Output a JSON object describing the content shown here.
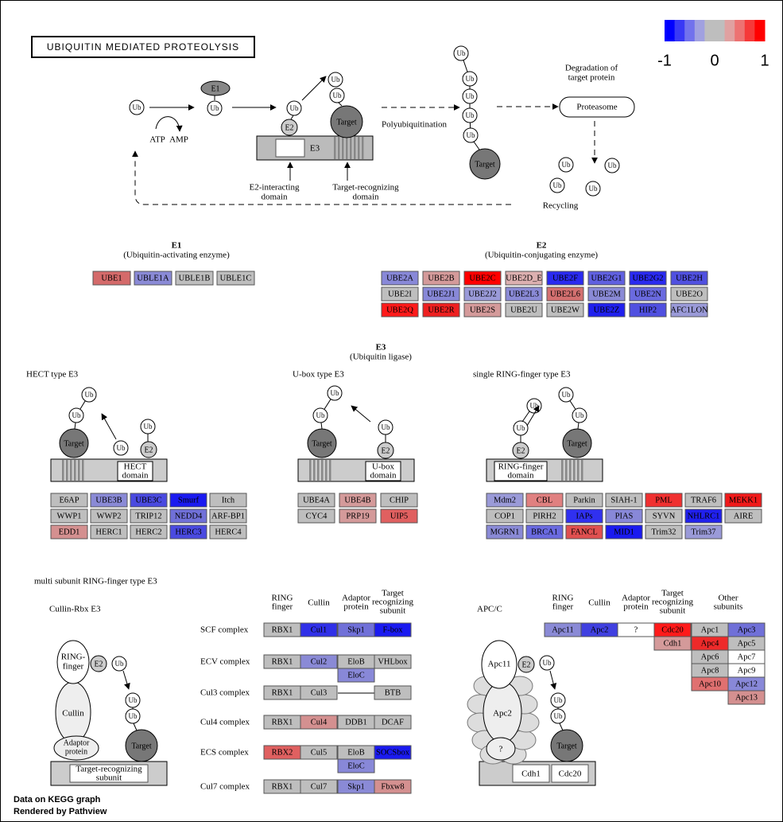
{
  "title": "UBIQUITIN MEDIATED PROTEOLYSIS",
  "legend": {
    "colors": [
      "#0000ff",
      "#3939f6",
      "#7272ed",
      "#a1a1e0",
      "#bebebe",
      "#bebebe",
      "#e0a1a1",
      "#ed7272",
      "#f63939",
      "#ff0000"
    ],
    "lim": [
      -1,
      1
    ],
    "ticks": [
      -1,
      0,
      1
    ]
  },
  "diagram": {
    "ub": "Ub",
    "e1": "E1",
    "e2": "E2",
    "e3": "E3",
    "target": "Target",
    "atp": "ATP",
    "amp": "AMP",
    "degradation": [
      "Degradation of",
      "target protein"
    ],
    "proteasome": "Proteasome",
    "polyubiquitination": "Polyubiquitination",
    "recycling": "Recycling",
    "e2_domain": [
      "E2-interacting",
      "domain"
    ],
    "target_domain": [
      "Target-recognizing",
      "domain"
    ]
  },
  "e1_section": {
    "title": "E1",
    "subtitle": "(Ubiquitin-activating enzyme)",
    "genes": [
      [
        {
          "label": "UBE1",
          "color": "#d46a6a"
        },
        {
          "label": "UBLE1A",
          "color": "#8a8ad6"
        },
        {
          "label": "UBLE1B",
          "color": "#bebebe"
        },
        {
          "label": "UBLE1C",
          "color": "#bebebe"
        }
      ]
    ]
  },
  "e2_section": {
    "title": "E2",
    "subtitle": "(Ubiquitin-conjugating enzyme)",
    "genes": [
      [
        {
          "label": "UBE2A",
          "color": "#8888d8"
        },
        {
          "label": "UBE2B",
          "color": "#d49a9a"
        },
        {
          "label": "UBE2C",
          "color": "#ff0000"
        },
        {
          "label": "UBE2D_E",
          "color": "#dcb0b0"
        },
        {
          "label": "UBE2F",
          "color": "#2a2af0"
        },
        {
          "label": "UBE2G1",
          "color": "#6060e0"
        },
        {
          "label": "UBE2G2",
          "color": "#2a2af0"
        },
        {
          "label": "UBE2H",
          "color": "#5050e0"
        }
      ],
      [
        {
          "label": "UBE2I",
          "color": "#bebebe"
        },
        {
          "label": "UBE2J1",
          "color": "#8888d8"
        },
        {
          "label": "UBE2J2",
          "color": "#9a9ad8"
        },
        {
          "label": "UBE2L3",
          "color": "#8a8ad6"
        },
        {
          "label": "UBE2L6",
          "color": "#d47070"
        },
        {
          "label": "UBE2M",
          "color": "#8a8ad6"
        },
        {
          "label": "UBE2N",
          "color": "#6a6ae0"
        },
        {
          "label": "UBE2O",
          "color": "#bebebe"
        }
      ],
      [
        {
          "label": "UBE2Q",
          "color": "#ff1a1a"
        },
        {
          "label": "UBE2R",
          "color": "#ee2020"
        },
        {
          "label": "UBE2S",
          "color": "#d49a9a"
        },
        {
          "label": "UBE2U",
          "color": "#bebebe"
        },
        {
          "label": "UBE2W",
          "color": "#bebebe"
        },
        {
          "label": "UBE2Z",
          "color": "#2020ee"
        },
        {
          "label": "HIP2",
          "color": "#5050e0"
        },
        {
          "label": "AFC1LON",
          "color": "#9a9ad8"
        }
      ]
    ]
  },
  "e3_section": {
    "title": "E3",
    "subtitle": "(Ubiquitin ligase)"
  },
  "hect": {
    "title": "HECT type E3",
    "domain": [
      "HECT",
      "domain"
    ],
    "genes": [
      [
        {
          "label": "E6AP",
          "color": "#bebebe"
        },
        {
          "label": "UBE3B",
          "color": "#8a8ad6"
        },
        {
          "label": "UBE3C",
          "color": "#4a4ae0"
        },
        {
          "label": "Smurf",
          "color": "#1a1af0"
        },
        {
          "label": "Itch",
          "color": "#bebebe"
        }
      ],
      [
        {
          "label": "WWP1",
          "color": "#bebebe"
        },
        {
          "label": "WWP2",
          "color": "#bebebe"
        },
        {
          "label": "TRIP12",
          "color": "#bebebe"
        },
        {
          "label": "NEDD4",
          "color": "#7070d8"
        },
        {
          "label": "ARF-BP1",
          "color": "#bebebe"
        }
      ],
      [
        {
          "label": "EDD1",
          "color": "#d49090"
        },
        {
          "label": "HERC1",
          "color": "#bebebe"
        },
        {
          "label": "HERC2",
          "color": "#bebebe"
        },
        {
          "label": "HERC3",
          "color": "#4a4ae0"
        },
        {
          "label": "HERC4",
          "color": "#bebebe"
        }
      ]
    ]
  },
  "ubox": {
    "title": "U-box type E3",
    "domain": [
      "U-box",
      "domain"
    ],
    "genes": [
      [
        {
          "label": "UBE4A",
          "color": "#bebebe"
        },
        {
          "label": "UBE4B",
          "color": "#d49a9a"
        },
        {
          "label": "CHIP",
          "color": "#bebebe"
        }
      ],
      [
        {
          "label": "CYC4",
          "color": "#bebebe"
        },
        {
          "label": "PRP19",
          "color": "#d49a9a"
        },
        {
          "label": "UIP5",
          "color": "#e06060"
        }
      ]
    ]
  },
  "ring": {
    "title": "single RING-finger type E3",
    "domain": [
      "RING-finger",
      "domain"
    ],
    "genes": [
      [
        {
          "label": "Mdm2",
          "color": "#9a9ad8"
        },
        {
          "label": "CBL",
          "color": "#e08080"
        },
        {
          "label": "Parkin",
          "color": "#bebebe"
        },
        {
          "label": "SIAH-1",
          "color": "#bebebe"
        },
        {
          "label": "PML",
          "color": "#f03030"
        },
        {
          "label": "TRAF6",
          "color": "#bebebe"
        },
        {
          "label": "MEKK1",
          "color": "#f01a1a"
        }
      ],
      [
        {
          "label": "COP1",
          "color": "#bebebe"
        },
        {
          "label": "PIRH2",
          "color": "#bebebe"
        },
        {
          "label": "IAPs",
          "color": "#3030f0"
        },
        {
          "label": "PIAS",
          "color": "#8888d8"
        },
        {
          "label": "SYVN",
          "color": "#bebebe"
        },
        {
          "label": "NHLRC1",
          "color": "#2020ee"
        },
        {
          "label": "AIRE",
          "color": "#bebebe"
        }
      ],
      [
        {
          "label": "MGRN1",
          "color": "#8a8ad6"
        },
        {
          "label": "BRCA1",
          "color": "#6a6ae0"
        },
        {
          "label": "FANCL",
          "color": "#e05050"
        },
        {
          "label": "MID1",
          "color": "#1a1af0"
        },
        {
          "label": "Trim32",
          "color": "#bebebe"
        },
        {
          "label": "Trim37",
          "color": "#9a9ad8"
        }
      ]
    ]
  },
  "multi": {
    "title": "multi subunit RING-finger type E3",
    "cullin_rbx": "Cullin-Rbx E3",
    "ring_finger": [
      "RING-",
      "finger"
    ],
    "cullin": "Cullin",
    "adaptor": [
      "Adaptor",
      "protein"
    ],
    "target_subunit": [
      "Target-recognizing",
      "subunit"
    ],
    "headers": [
      [
        "RING",
        "finger"
      ],
      [
        "Cullin"
      ],
      [
        "Adaptor",
        "protein"
      ],
      [
        "Target",
        "recognizing",
        "subunit"
      ]
    ],
    "complexes": [
      {
        "name": "SCF complex",
        "cells": [
          {
            "label": "RBX1",
            "color": "#bebebe"
          },
          {
            "label": "Cul1",
            "color": "#3030e8"
          },
          {
            "label": "Skp1",
            "color": "#7070d8"
          },
          {
            "label": "F-box",
            "color": "#1a1af0"
          }
        ]
      },
      {
        "name": "ECV complex",
        "cells": [
          {
            "label": "RBX1",
            "color": "#bebebe"
          },
          {
            "label": "Cul2",
            "color": "#8a8ad6"
          },
          {
            "label": "EloB",
            "color": "#bebebe"
          },
          {
            "label": "VHLbox",
            "color": "#bebebe"
          }
        ],
        "sub": {
          "label": "EloC",
          "color": "#8888d8"
        }
      },
      {
        "name": "Cul3 complex",
        "cells": [
          {
            "label": "RBX1",
            "color": "#bebebe"
          },
          {
            "label": "Cul3",
            "color": "#bebebe"
          },
          null,
          {
            "label": "BTB",
            "color": "#bebebe"
          }
        ]
      },
      {
        "name": "Cul4 complex",
        "cells": [
          {
            "label": "RBX1",
            "color": "#bebebe"
          },
          {
            "label": "Cul4",
            "color": "#d49090"
          },
          {
            "label": "DDB1",
            "color": "#bebebe"
          },
          {
            "label": "DCAF",
            "color": "#bebebe"
          }
        ]
      },
      {
        "name": "ECS complex",
        "cells": [
          {
            "label": "RBX2",
            "color": "#e06060"
          },
          {
            "label": "Cul5",
            "color": "#bebebe"
          },
          {
            "label": "EloB",
            "color": "#bebebe"
          },
          {
            "label": "SOCSbox",
            "color": "#1a1af0"
          }
        ],
        "sub": {
          "label": "EloC",
          "color": "#8888d8"
        }
      },
      {
        "name": "Cul7 complex",
        "cells": [
          {
            "label": "RBX1",
            "color": "#bebebe"
          },
          {
            "label": "Cul7",
            "color": "#bebebe"
          },
          {
            "label": "Skp1",
            "color": "#8a8ad6"
          },
          {
            "label": "Fbxw8",
            "color": "#d49090"
          }
        ]
      }
    ]
  },
  "apc": {
    "title": "APC/C",
    "apc11": "Apc11",
    "apc2": "Apc2",
    "unknown": "?",
    "cdh1": "Cdh1",
    "cdc20": "Cdc20",
    "headers": [
      [
        "RING",
        "finger"
      ],
      [
        "Cullin"
      ],
      [
        "Adaptor",
        "protein"
      ],
      [
        "Target",
        "recognizing",
        "subunit"
      ],
      [
        "Other",
        "subunits"
      ]
    ],
    "columns": [
      [
        {
          "label": "Apc11",
          "color": "#8a8ad6"
        }
      ],
      [
        {
          "label": "Apc2",
          "color": "#4040e0"
        }
      ],
      [
        {
          "label": "?",
          "color": "#ffffff"
        }
      ],
      [
        {
          "label": "Cdc20",
          "color": "#ff1a1a"
        },
        {
          "label": "Cdh1",
          "color": "#d49a9a"
        }
      ],
      [
        {
          "label": "Apc1",
          "color": "#bebebe"
        },
        {
          "label": "Apc4",
          "color": "#ee2a2a"
        },
        {
          "label": "Apc6",
          "color": "#bebebe"
        },
        {
          "label": "Apc8",
          "color": "#bebebe"
        },
        {
          "label": "Apc10",
          "color": "#e07070"
        }
      ],
      [
        {
          "label": "Apc3",
          "color": "#7070d8"
        },
        {
          "label": "Apc5",
          "color": "#bebebe"
        },
        {
          "label": "Apc7",
          "color": "#ffffff"
        },
        {
          "label": "Apc9",
          "color": "#ffffff"
        },
        {
          "label": "Apc12",
          "color": "#8888d8"
        },
        {
          "label": "Apc13",
          "color": "#d49090"
        }
      ]
    ]
  },
  "footer": [
    "Data on KEGG graph",
    "Rendered by Pathview"
  ]
}
